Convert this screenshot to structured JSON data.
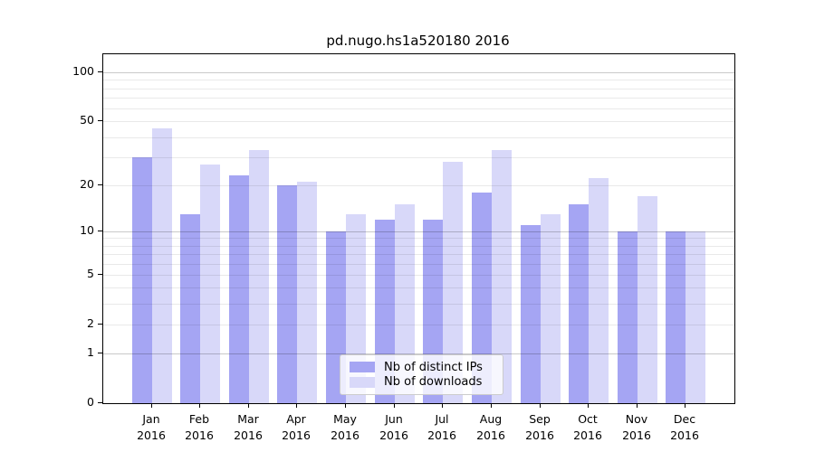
{
  "figure": {
    "title": "pd.nugo.hs1a520180 2016"
  },
  "legend": {
    "position": "lower-center",
    "items": [
      {
        "label": "Nb of distinct IPs",
        "color": "#a5a5f3"
      },
      {
        "label": "Nb of downloads",
        "color": "#d8d8f9"
      }
    ]
  },
  "chart_data": {
    "type": "bar",
    "title": "pd.nugo.hs1a520180 2016",
    "categories": [
      "Jan",
      "Feb",
      "Mar",
      "Apr",
      "May",
      "Jun",
      "Jul",
      "Aug",
      "Sep",
      "Oct",
      "Nov",
      "Dec"
    ],
    "category_sublabel": "2016",
    "series": [
      {
        "name": "Nb of distinct IPs",
        "color": "#a5a5f3",
        "values": [
          30,
          13,
          23,
          20,
          10,
          12,
          12,
          18,
          11,
          15,
          10,
          10
        ]
      },
      {
        "name": "Nb of downloads",
        "color": "#d8d8f9",
        "values": [
          45,
          27,
          33,
          21,
          13,
          15,
          28,
          33,
          13,
          22,
          17,
          10
        ]
      }
    ],
    "yscale": "log1p",
    "ylim": [
      0,
      129
    ],
    "yticks": [
      0,
      1,
      2,
      5,
      10,
      20,
      50,
      100
    ],
    "gridlines_dark": [
      1,
      10,
      100
    ],
    "gridlines_light": [
      2,
      3,
      4,
      5,
      6,
      7,
      8,
      9,
      20,
      30,
      40,
      50,
      60,
      70,
      80,
      90
    ],
    "grid": true,
    "xlabel": "",
    "ylabel": ""
  }
}
